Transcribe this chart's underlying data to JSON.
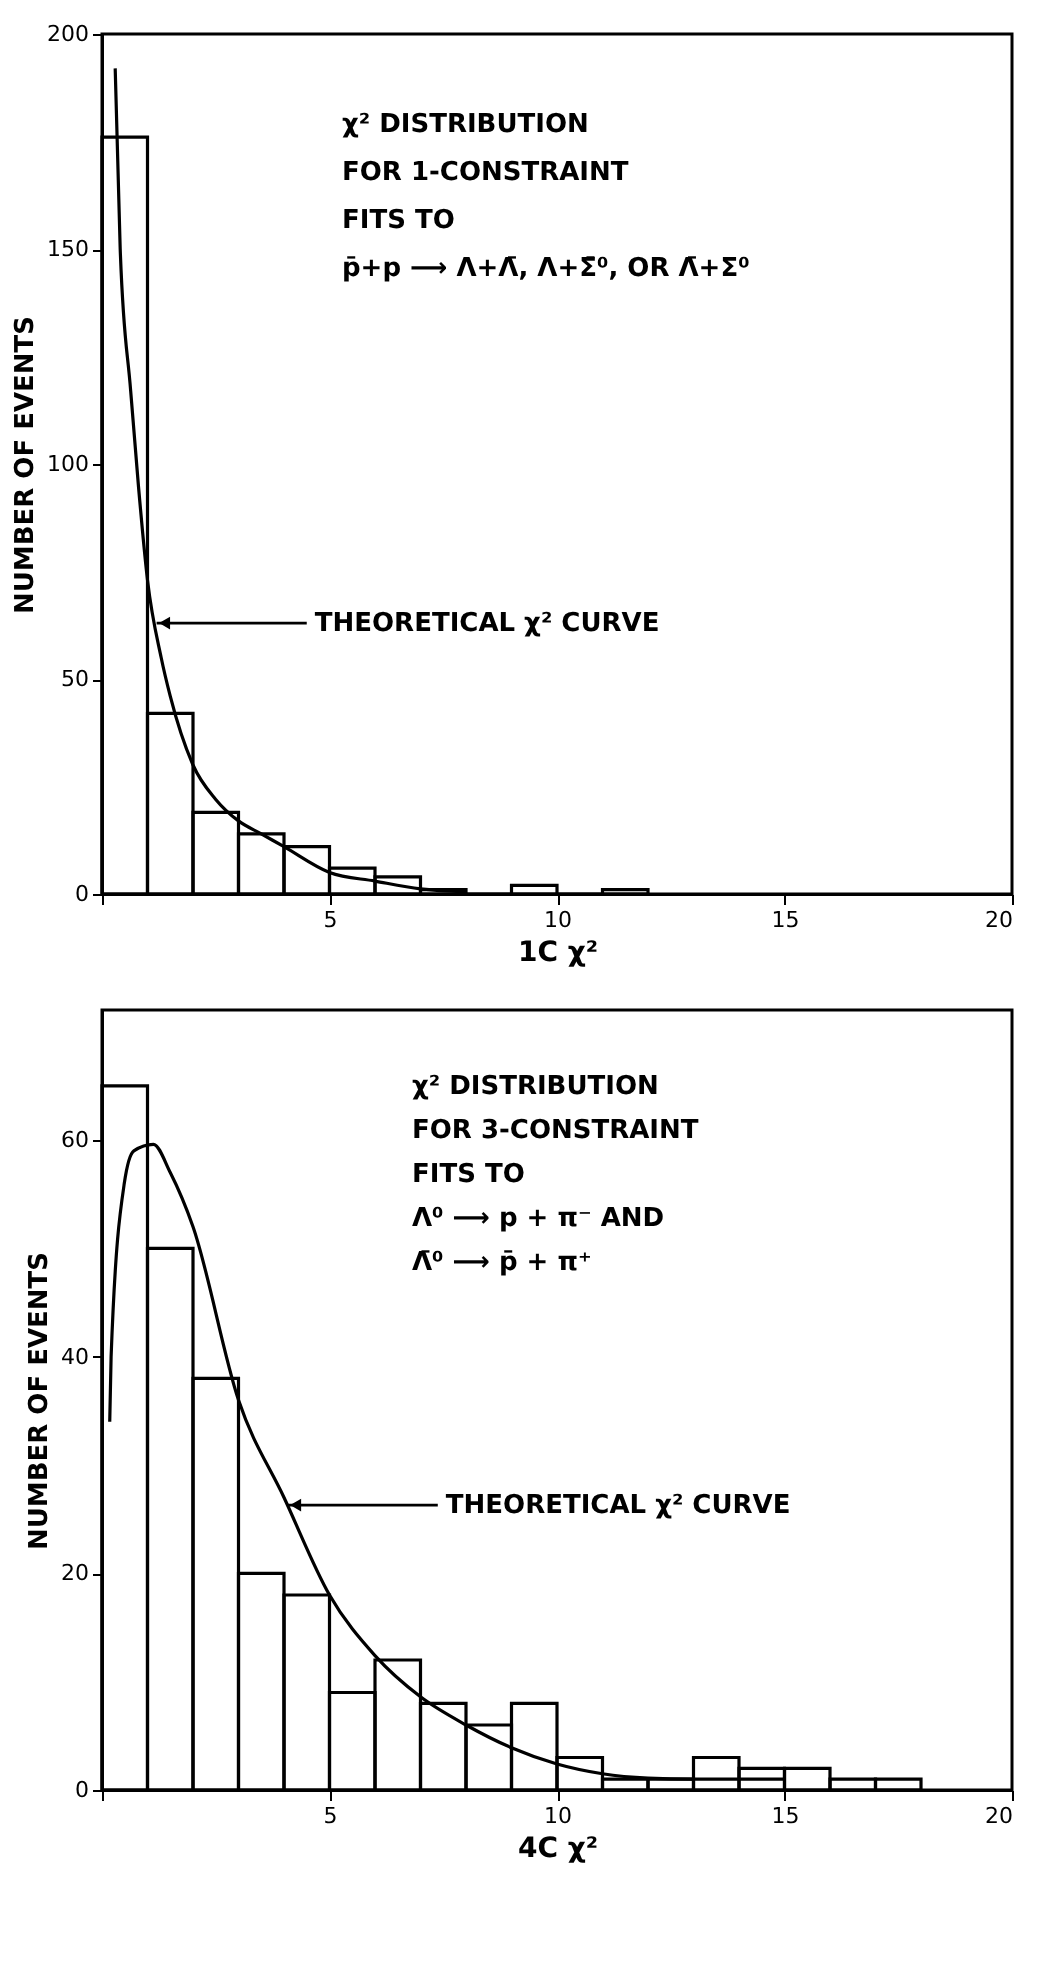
{
  "chart_data": [
    {
      "type": "histogram",
      "bins": [
        0,
        1,
        2,
        3,
        4,
        5,
        6,
        7,
        8,
        9,
        10,
        11,
        12
      ],
      "values": [
        176,
        42,
        19,
        14,
        11,
        6,
        4,
        1,
        0,
        2,
        0,
        1
      ],
      "color": "#000000",
      "series": [
        {
          "type": "line",
          "color": "#000000",
          "x": [
            0.29,
            0.4,
            0.63,
            0.8,
            1.0,
            1.3,
            1.5,
            2,
            2.5,
            3,
            3.5,
            4,
            5,
            6,
            7,
            8
          ],
          "values": [
            192,
            150,
            117,
            95,
            73,
            55,
            46,
            30,
            22,
            17,
            14,
            11,
            5,
            3,
            1.2,
            0.5
          ]
        }
      ],
      "xlabel": "1C χ²",
      "ylabel": "NUMBER OF EVENTS",
      "xlim": [
        0,
        20
      ],
      "ylim": [
        0,
        200
      ],
      "xticks": [
        {
          "value": 0,
          "label": null
        },
        5,
        10,
        15,
        20
      ],
      "yticks": [
        0,
        50,
        100,
        150,
        200
      ],
      "grid": false,
      "annotations": [
        "χ² DISTRIBUTION",
        "FOR 1-CONSTRAINT",
        "FITS TO",
        "p̄+p ⟶ Λ+Λ̄, Λ+Σ̄⁰, OR Λ̄+Σ⁰",
        {
          "text": "THEORETICAL χ² CURVE",
          "x": 1.2,
          "y": 63
        }
      ]
    },
    {
      "type": "histogram",
      "bins": [
        0,
        1,
        2,
        3,
        4,
        5,
        6,
        7,
        8,
        9,
        10,
        11,
        12,
        13,
        14,
        15,
        16,
        17,
        18
      ],
      "values": [
        65,
        50,
        38,
        20,
        18,
        9,
        12,
        8,
        6,
        8,
        3,
        1,
        1,
        3,
        2,
        2,
        1,
        1
      ],
      "color": "#000000",
      "series": [
        {
          "type": "line",
          "color": "#000000",
          "x": [
            0.17,
            0.2,
            0.49,
            0.7,
            1.13,
            1.5,
            2,
            3,
            4,
            5,
            6,
            7,
            8,
            9,
            10,
            11,
            12,
            13,
            15
          ],
          "values": [
            34,
            40,
            56,
            59,
            59.6,
            57,
            52,
            36,
            27,
            18,
            12.4,
            8.6,
            6,
            3.9,
            2.4,
            1.5,
            1.1,
            1,
            1
          ]
        }
      ],
      "xlabel": "4C χ²",
      "ylabel": "NUMBER OF EVENTS",
      "xlim": [
        0,
        20
      ],
      "ylim": [
        0,
        72
      ],
      "xticks": [
        {
          "value": 0,
          "label": null
        },
        5,
        10,
        15,
        20
      ],
      "yticks": [
        0,
        20,
        40,
        60
      ],
      "grid": false,
      "annotations": [
        "χ² DISTRIBUTION",
        "FOR 3-CONSTRAINT",
        "FITS TO",
        "Λ⁰ ⟶ p + π⁻ AND",
        "Λ̄⁰ ⟶ p̄ + π⁺",
        {
          "text": "THEORETICAL χ² CURVE",
          "x": 4.08,
          "y": 26.3
        }
      ]
    }
  ]
}
